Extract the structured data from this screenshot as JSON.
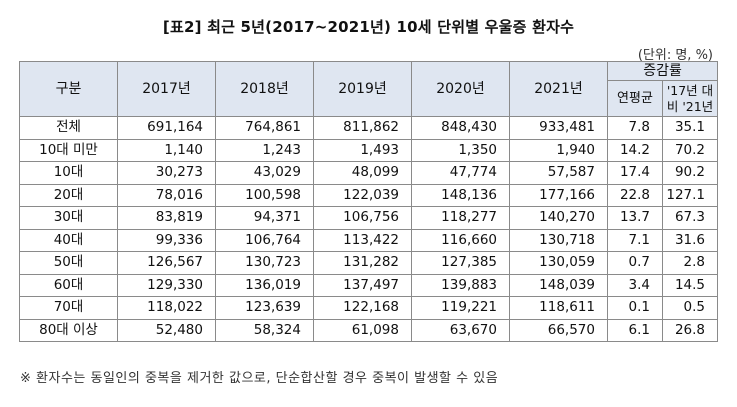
{
  "title": "[표2] 최근 5년(2017~2021년) 10세 단위별 우울증 환자수",
  "unit": "(단위: 명, %)",
  "table": {
    "header": {
      "category": "구분",
      "years": [
        "2017년",
        "2018년",
        "2019년",
        "2020년",
        "2021년"
      ],
      "growth_group": "증감률",
      "growth_cols": [
        "연평균",
        "'17년 대비 '21년"
      ]
    },
    "rows": [
      {
        "cat": "전체",
        "v": [
          "691,164",
          "764,861",
          "811,862",
          "848,430",
          "933,481",
          "7.8",
          "35.1"
        ]
      },
      {
        "cat": "10대 미만",
        "v": [
          "1,140",
          "1,243",
          "1,493",
          "1,350",
          "1,940",
          "14.2",
          "70.2"
        ]
      },
      {
        "cat": "10대",
        "v": [
          "30,273",
          "43,029",
          "48,099",
          "47,774",
          "57,587",
          "17.4",
          "90.2"
        ]
      },
      {
        "cat": "20대",
        "v": [
          "78,016",
          "100,598",
          "122,039",
          "148,136",
          "177,166",
          "22.8",
          "127.1"
        ]
      },
      {
        "cat": "30대",
        "v": [
          "83,819",
          "94,371",
          "106,756",
          "118,277",
          "140,270",
          "13.7",
          "67.3"
        ]
      },
      {
        "cat": "40대",
        "v": [
          "99,336",
          "106,764",
          "113,422",
          "116,660",
          "130,718",
          "7.1",
          "31.6"
        ]
      },
      {
        "cat": "50대",
        "v": [
          "126,567",
          "130,723",
          "131,282",
          "127,385",
          "130,059",
          "0.7",
          "2.8"
        ]
      },
      {
        "cat": "60대",
        "v": [
          "129,330",
          "136,019",
          "137,497",
          "139,883",
          "148,039",
          "3.4",
          "14.5"
        ]
      },
      {
        "cat": "70대",
        "v": [
          "118,022",
          "123,639",
          "122,168",
          "119,221",
          "118,611",
          "0.1",
          "0.5"
        ]
      },
      {
        "cat": "80대 이상",
        "v": [
          "52,480",
          "58,324",
          "61,098",
          "63,670",
          "66,570",
          "6.1",
          "26.8"
        ]
      }
    ]
  },
  "footnote": "※ 환자수는 동일인의 중복을 제거한 값으로, 단순합산할 경우 중복이 발생할 수 있음"
}
